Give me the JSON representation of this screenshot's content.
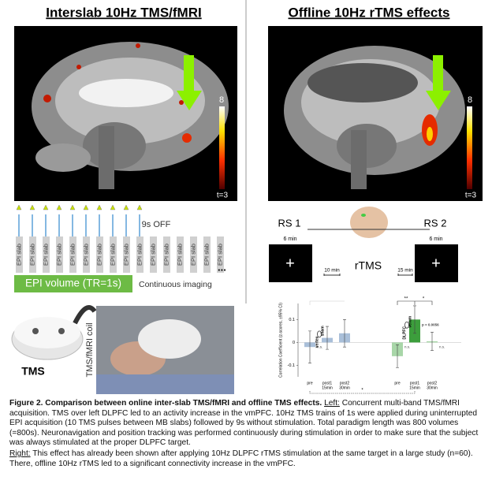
{
  "left": {
    "title": "Interslab 10Hz TMS/fMRI",
    "colorbar_max": "8",
    "colorbar_min": "t=3",
    "off_label": "9s OFF",
    "slabs": [
      "EPI slab",
      "EPI slab",
      "EPI slab",
      "EPI slab",
      "EPI slab",
      "EPI slab",
      "EPI slab",
      "EPI slab",
      "EPI slab",
      "EPI slab",
      "EPI slab",
      "EPI slab",
      "EPI slab",
      "EPI slab",
      "EPI slab",
      "EPI slab"
    ],
    "volume_label": "EPI volume (TR=1s)",
    "continuous_label": "Continuous imaging",
    "ellipsis": "...",
    "device_label": "TMS",
    "coil_label": "TMS/fMRI coil"
  },
  "right": {
    "title": "Offline 10Hz rTMS effects",
    "colorbar_max": "8",
    "colorbar_min": "t=3",
    "rs1": "RS 1",
    "rs2": "RS 2",
    "rs1_duration": "6 min",
    "rs2_duration": "6 min",
    "rtms_label": "rTMS",
    "gap1": "10 min",
    "gap2": "15 min",
    "plus1": "+",
    "plus2": "+"
  },
  "chart_data": {
    "type": "bar",
    "y_label": "Correlation Coefficient (z-scores, ±95% CI)",
    "categories": [
      "pre",
      "post1",
      "post2",
      "pre",
      "post1",
      "post2"
    ],
    "sublabels": [
      null,
      "15min",
      "30min",
      null,
      "15min",
      "30min"
    ],
    "values": [
      -0.02,
      0.02,
      0.04,
      -0.06,
      0.1,
      0.005
    ],
    "errors": [
      0.07,
      0.05,
      0.06,
      0.05,
      0.06,
      0.04
    ],
    "colors": [
      "#a9bfd9",
      "#a9bfd9",
      "#a9bfd9",
      "#a8d6a8",
      "#3c9e3c",
      "#a8d6a8"
    ],
    "bar_notes": [
      "n.s.",
      null,
      null,
      "n.s.",
      "p = 0.0056",
      "n.s."
    ],
    "groups": [
      {
        "name": "vertex",
        "sub": "sham"
      },
      {
        "name": "DLPFC",
        "sub": "verum"
      }
    ],
    "sig_top": [
      "**",
      "*"
    ],
    "sig_bottom": "*",
    "ylim": [
      -0.15,
      0.17
    ],
    "yticks": [
      -0.1,
      0,
      0.1
    ]
  },
  "caption": {
    "bold": "Figure 2. Comparison between online inter-slab TMS/fMRI and offline TMS effects.",
    "left_label": "Left:",
    "left_text": " Concurrent multi-band TMS/fMRI acquisition. TMS over left DLPFC led to an activity increase in the vmPFC. 10Hz TMS trains of 1s were applied during uninterrupted EPI acquisition (10 TMS pulses between MB slabs) followed by 9s without stimulation. Total paradigm length was 800 volumes (=800s). Neuronavigation and position tracking was performed continuously during stimulation in order to make sure that the subject was always stimulated at the proper DLPFC target.",
    "right_label": "Right:",
    "right_text": " This effect has already been shown after applying 10Hz DLPFC rTMS stimulation at the same target in a large study (n=60). There, offline 10Hz rTMS led to a significant connectivity  increase in the vmPFC."
  }
}
